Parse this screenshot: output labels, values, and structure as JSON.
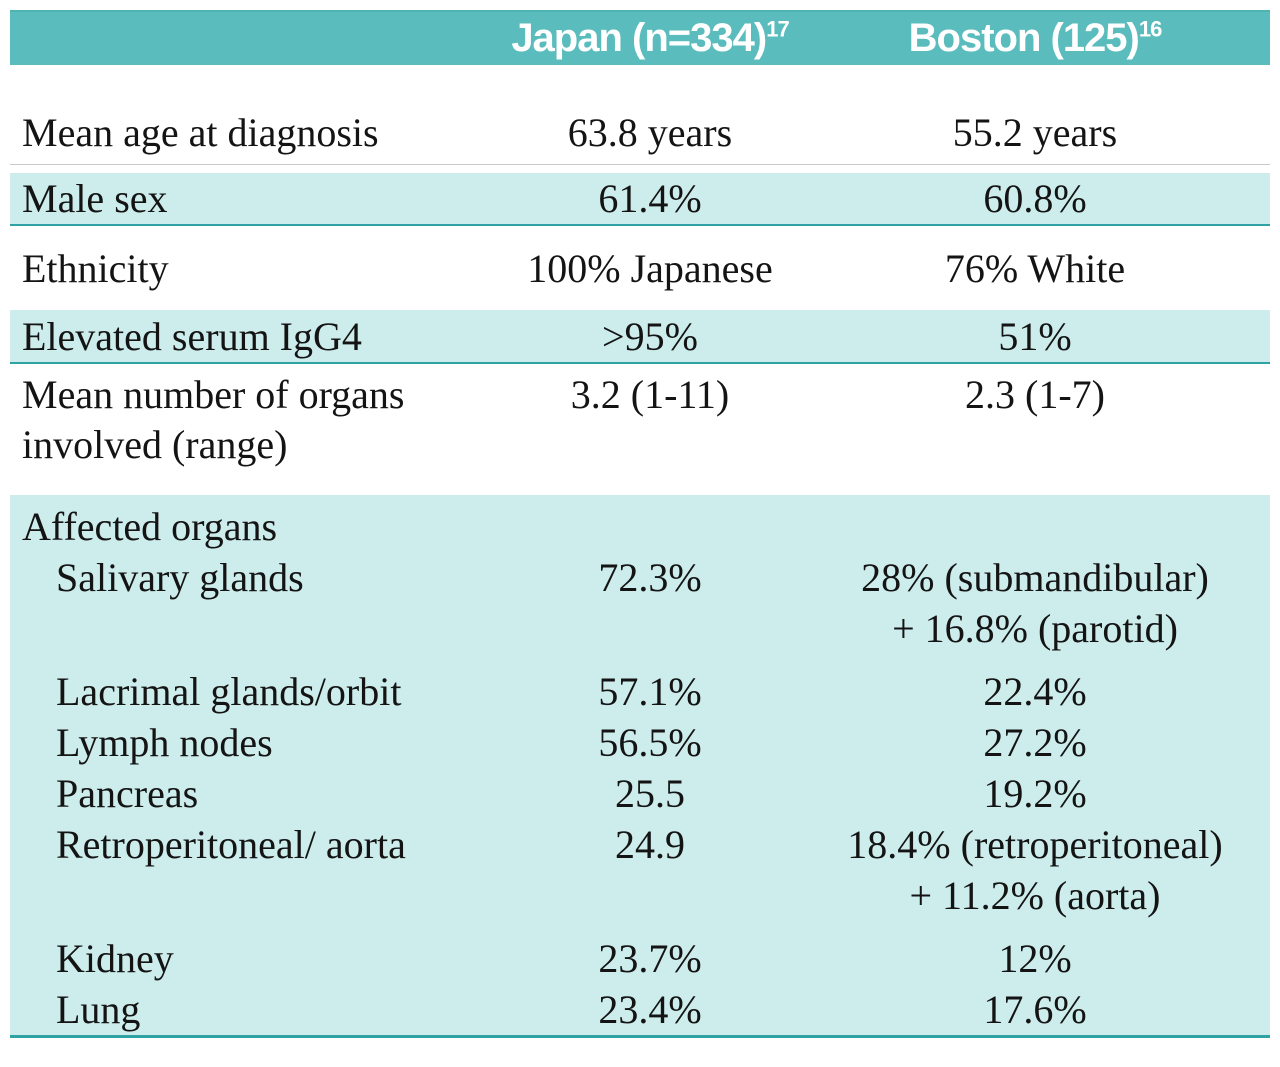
{
  "colors": {
    "header_bg": "#5bbcbd",
    "band_bg": "#cdecec",
    "divider_teal": "#2fa2a4",
    "hairline_gray": "#c9c9c9",
    "header_text": "#ffffff",
    "body_text": "#141414"
  },
  "table": {
    "header": {
      "japan": {
        "label": "Japan (n=334)",
        "sup": "17"
      },
      "boston": {
        "label": "Boston (125)",
        "sup": "16"
      }
    },
    "rows": [
      {
        "label": "Mean age at diagnosis",
        "japan": "63.8 years",
        "boston": "55.2 years"
      },
      {
        "label": "Male sex",
        "japan": "61.4%",
        "boston": "60.8%"
      },
      {
        "label": "Ethnicity",
        "japan": "100% Japanese",
        "boston": "76% White"
      },
      {
        "label": "Elevated serum IgG4",
        "japan": ">95%",
        "boston": "51%"
      },
      {
        "label": "Mean number of organs involved (range)",
        "japan": "3.2 (1-11)",
        "boston": "2.3 (1-7)"
      }
    ],
    "affected_organs": {
      "heading": "Affected organs",
      "rows": [
        {
          "label": "Salivary glands",
          "japan": "72.3%",
          "boston": "28% (submandibular)",
          "boston2": "+ 16.8% (parotid)"
        },
        {
          "label": "Lacrimal glands/orbit",
          "japan": "57.1%",
          "boston": "22.4%"
        },
        {
          "label": "Lymph nodes",
          "japan": "56.5%",
          "boston": "27.2%"
        },
        {
          "label": "Pancreas",
          "japan": "25.5",
          "boston": "19.2%"
        },
        {
          "label": "Retroperitoneal/ aorta",
          "japan": "24.9",
          "boston": "18.4% (retroperitoneal)",
          "boston2": "+ 11.2% (aorta)"
        },
        {
          "label": "Kidney",
          "japan": "23.7%",
          "boston": "12%"
        },
        {
          "label": "Lung",
          "japan": "23.4%",
          "boston": "17.6%"
        }
      ]
    }
  },
  "chart_data": {
    "type": "table",
    "columns": [
      "",
      "Japan (n=334)^17",
      "Boston (125)^16"
    ],
    "rows": [
      [
        "Mean age at diagnosis",
        "63.8 years",
        "55.2 years"
      ],
      [
        "Male sex",
        "61.4%",
        "60.8%"
      ],
      [
        "Ethnicity",
        "100% Japanese",
        "76% White"
      ],
      [
        "Elevated serum IgG4",
        ">95%",
        "51%"
      ],
      [
        "Mean number of organs involved (range)",
        "3.2 (1-11)",
        "2.3 (1-7)"
      ],
      [
        "Affected organs",
        "",
        ""
      ],
      [
        "Salivary glands",
        "72.3%",
        "28% (submandibular) + 16.8% (parotid)"
      ],
      [
        "Lacrimal glands/orbit",
        "57.1%",
        "22.4%"
      ],
      [
        "Lymph nodes",
        "56.5%",
        "27.2%"
      ],
      [
        "Pancreas",
        "25.5",
        "19.2%"
      ],
      [
        "Retroperitoneal/ aorta",
        "24.9",
        "18.4% (retroperitoneal) + 11.2% (aorta)"
      ],
      [
        "Kidney",
        "23.7%",
        "12%"
      ],
      [
        "Lung",
        "23.4%",
        "17.6%"
      ]
    ]
  }
}
